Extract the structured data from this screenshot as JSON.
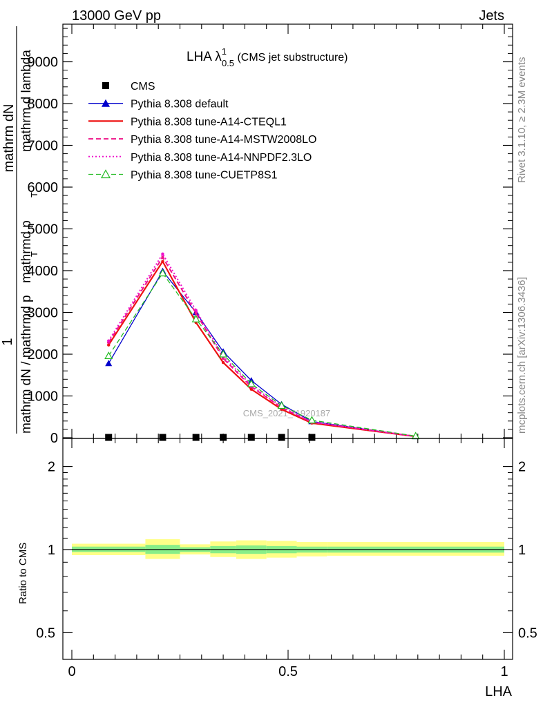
{
  "header": {
    "left": "13000 GeV pp",
    "right": "Jets",
    "rivet": "Rivet 3.1.10, ≥ 2.3M events",
    "mcplots": "mcplots.cern.ch [arXiv:1306.3436]",
    "watermark": "CMS_2021_I1920187"
  },
  "main_title": {
    "base": "LHA λ",
    "sup": "1",
    "sub": "0.5",
    "tail": " (CMS jet substructure)"
  },
  "ylabel": {
    "numerator": "mathrm dN",
    "one": "1",
    "main_lines": [
      "mathrm dN / mathrmd p",
      "mathrmd p",
      "mathrm d lambda"
    ],
    "subscript_T": "T"
  },
  "ratio_ylabel": "Ratio to CMS",
  "xlabel": "LHA",
  "colors": {
    "default": "#0000cc",
    "a14_cteql1": "#ee1111",
    "a14_mstw": "#ee1188",
    "a14_nnpdf": "#ee11cc",
    "cuetp8s1": "#22bb22",
    "band_outer": "#ffff88",
    "band_inner": "#88ee88"
  },
  "chart_data": [
    {
      "type": "line",
      "panel": "main",
      "x_range": [
        -0.02,
        1.02
      ],
      "ylim": [
        0,
        9000
      ],
      "y_ticks": [
        0,
        1000,
        2000,
        3000,
        4000,
        5000,
        6000,
        7000,
        8000,
        9000
      ],
      "y_tick_labels": [
        "0",
        "1000",
        "2000",
        "3000",
        "4000",
        "5000",
        "6000",
        "7000",
        "8000",
        "9000"
      ],
      "data": {
        "name": "CMS",
        "x": [
          0.085,
          0.21,
          0.287,
          0.35,
          0.415,
          0.485,
          0.555
        ],
        "y": [
          8,
          8,
          8,
          8,
          8,
          8,
          8
        ]
      },
      "series": [
        {
          "name": "Pythia 8.308 default",
          "color_key": "default",
          "dash": "solid",
          "marker": "triangle-filled",
          "x": [
            0.085,
            0.21,
            0.287,
            0.35,
            0.415,
            0.485,
            0.555,
            0.795
          ],
          "y": [
            1780,
            3990,
            3000,
            2060,
            1370,
            800,
            390,
            30
          ]
        },
        {
          "name": "Pythia 8.308 tune-A14-CTEQL1",
          "color_key": "a14_cteql1",
          "dash": "solid",
          "marker": "dot",
          "x": [
            0.085,
            0.21,
            0.287,
            0.35,
            0.415,
            0.485,
            0.555,
            0.795
          ],
          "y": [
            2220,
            4220,
            2760,
            1800,
            1160,
            680,
            350,
            30
          ]
        },
        {
          "name": "Pythia 8.308 tune-A14-MSTW2008LO",
          "color_key": "a14_mstw",
          "dash": "dashed",
          "marker": "dot",
          "x": [
            0.085,
            0.21,
            0.287,
            0.35,
            0.415,
            0.485,
            0.555,
            0.795
          ],
          "y": [
            2280,
            4320,
            2980,
            1900,
            1220,
            720,
            370,
            30
          ]
        },
        {
          "name": "Pythia 8.308 tune-A14-NNPDF2.3LO",
          "color_key": "a14_nnpdf",
          "dash": "dotted",
          "marker": "dot",
          "x": [
            0.085,
            0.21,
            0.287,
            0.35,
            0.415,
            0.485,
            0.555,
            0.795
          ],
          "y": [
            2320,
            4400,
            3050,
            1950,
            1250,
            740,
            380,
            30
          ]
        },
        {
          "name": "Pythia 8.308 tune-CUETP8S1",
          "color_key": "cuetp8s1",
          "dash": "dashed",
          "marker": "triangle-open",
          "x": [
            0.085,
            0.21,
            0.287,
            0.35,
            0.415,
            0.485,
            0.555,
            0.795
          ],
          "y": [
            1960,
            3940,
            2840,
            2000,
            1290,
            770,
            420,
            40
          ]
        }
      ]
    },
    {
      "type": "area",
      "panel": "ratio",
      "ylabel": "Ratio to CMS",
      "xlabel": "LHA",
      "log_y": true,
      "ylim": [
        0.37,
        2.3
      ],
      "y_ticks": [
        0.5,
        1,
        2
      ],
      "y_tick_labels": [
        "0.5",
        "1",
        "2"
      ],
      "x_ticks": [
        0,
        0.5,
        1
      ],
      "x_tick_labels": [
        "0",
        "0.5",
        "1"
      ],
      "reference": 1,
      "bins": [
        {
          "lo": 0.0,
          "hi": 0.17,
          "outer": [
            0.955,
            1.05
          ],
          "inner": [
            0.98,
            1.025
          ]
        },
        {
          "lo": 0.17,
          "hi": 0.25,
          "outer": [
            0.925,
            1.09
          ],
          "inner": [
            0.965,
            1.04
          ]
        },
        {
          "lo": 0.25,
          "hi": 0.32,
          "outer": [
            0.96,
            1.045
          ],
          "inner": [
            0.98,
            1.02
          ]
        },
        {
          "lo": 0.32,
          "hi": 0.38,
          "outer": [
            0.94,
            1.07
          ],
          "inner": [
            0.97,
            1.03
          ]
        },
        {
          "lo": 0.38,
          "hi": 0.45,
          "outer": [
            0.925,
            1.08
          ],
          "inner": [
            0.965,
            1.035
          ]
        },
        {
          "lo": 0.45,
          "hi": 0.52,
          "outer": [
            0.935,
            1.075
          ],
          "inner": [
            0.97,
            1.03
          ]
        },
        {
          "lo": 0.52,
          "hi": 0.59,
          "outer": [
            0.945,
            1.065
          ],
          "inner": [
            0.975,
            1.025
          ]
        },
        {
          "lo": 0.59,
          "hi": 1.0,
          "outer": [
            0.95,
            1.065
          ],
          "inner": [
            0.975,
            1.025
          ]
        }
      ]
    }
  ]
}
